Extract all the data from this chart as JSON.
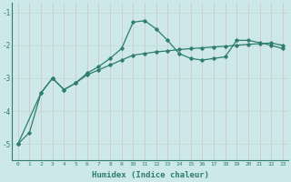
{
  "xlabel": "Humidex (Indice chaleur)",
  "background_color": "#cce8e8",
  "line_color": "#2e7d6e",
  "xlim": [
    -0.5,
    23.5
  ],
  "ylim": [
    -5.5,
    -0.7
  ],
  "yticks": [
    -5,
    -4,
    -3,
    -2,
    -1
  ],
  "xticks": [
    0,
    1,
    2,
    3,
    4,
    5,
    6,
    7,
    8,
    9,
    10,
    11,
    12,
    13,
    14,
    15,
    16,
    17,
    18,
    19,
    20,
    21,
    22,
    23
  ],
  "line1_x": [
    0,
    1,
    2,
    3,
    4,
    5,
    6,
    7,
    8,
    9,
    10,
    11,
    12,
    13,
    14,
    15,
    16,
    17,
    18,
    19,
    20,
    21,
    22,
    23
  ],
  "line1_y": [
    -5.0,
    -4.65,
    -3.45,
    -3.0,
    -3.35,
    -3.15,
    -2.85,
    -2.65,
    -2.4,
    -2.1,
    -1.3,
    -1.25,
    -1.5,
    -1.85,
    -2.25,
    -2.4,
    -2.45,
    -2.4,
    -2.35,
    -1.85,
    -1.85,
    -1.92,
    -2.0,
    -2.1
  ],
  "line2_x": [
    0,
    2,
    3,
    4,
    5,
    6,
    7,
    8,
    9,
    10,
    11,
    12,
    13,
    14,
    15,
    16,
    17,
    18,
    19,
    20,
    21,
    22,
    23
  ],
  "line2_y": [
    -5.0,
    -3.45,
    -3.0,
    -3.35,
    -3.15,
    -2.9,
    -2.75,
    -2.6,
    -2.45,
    -2.3,
    -2.25,
    -2.2,
    -2.17,
    -2.13,
    -2.1,
    -2.08,
    -2.05,
    -2.03,
    -2.0,
    -1.97,
    -1.95,
    -1.93,
    -2.0
  ]
}
